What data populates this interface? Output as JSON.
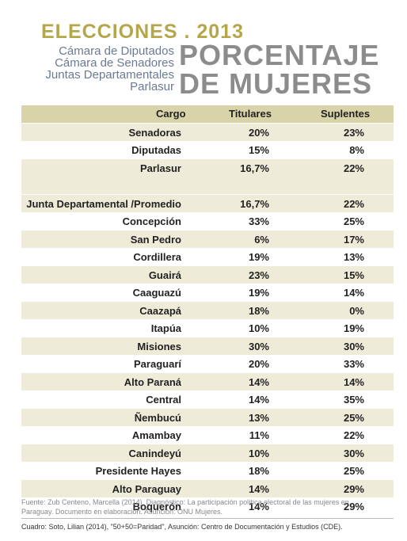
{
  "header": {
    "title": "ELECCIONES . 2013",
    "bodies": [
      "Cámara de Diputados",
      "Cámara de Senadores",
      "Juntas Departamentales",
      "Parlasur"
    ],
    "headline": [
      "PORCENTAJE",
      "DE MUJERES"
    ]
  },
  "table": {
    "columns": [
      "Cargo",
      "Titulares",
      "Suplentes"
    ],
    "groups": [
      [
        [
          "Senadoras",
          "20%",
          "23%"
        ],
        [
          "Diputadas",
          "15%",
          "8%"
        ],
        [
          "Parlasur",
          "16,7%",
          "22%"
        ]
      ],
      [
        [
          "Junta Departamental /Promedio",
          "16,7%",
          "22%"
        ],
        [
          "Concepción",
          "33%",
          "25%"
        ],
        [
          "San Pedro",
          "6%",
          "17%"
        ],
        [
          "Cordillera",
          "19%",
          "13%"
        ],
        [
          "Guairá",
          "23%",
          "15%"
        ],
        [
          "Caaguazú",
          "19%",
          "14%"
        ],
        [
          "Caazapá",
          "18%",
          "0%"
        ],
        [
          "Itapúa",
          "10%",
          "19%"
        ],
        [
          "Misiones",
          "30%",
          "30%"
        ],
        [
          "Paraguarí",
          "20%",
          "33%"
        ],
        [
          "Alto Paraná",
          "14%",
          "14%"
        ],
        [
          "Central",
          "14%",
          "35%"
        ],
        [
          "Ñembucú",
          "13%",
          "25%"
        ],
        [
          "Amambay",
          "11%",
          "22%"
        ],
        [
          "Canindeyú",
          "10%",
          "30%"
        ],
        [
          "Presidente Hayes",
          "18%",
          "25%"
        ],
        [
          "Alto Paraguay",
          "14%",
          "29%"
        ],
        [
          "Boquerón",
          "14%",
          "29%"
        ]
      ]
    ]
  },
  "notes": {
    "source": "Fuente: Zub Centeno, Marcella (2014). Diagnóstico: La participación política electoral de las mujeres en Paraguay. Documento en elaboración. Asunción: ONU Mujeres.",
    "credit": "Cuadro: Soto, Lilian (2014), \"50+50=Paridad\", Asunción: Centro de Documentación y Estudios (CDE)."
  }
}
